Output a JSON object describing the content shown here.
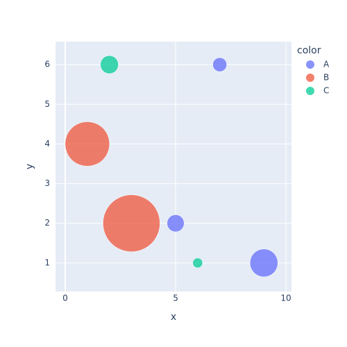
{
  "chart_data": {
    "type": "scatter",
    "x_label": "x",
    "y_label": "y",
    "legend_title": "color",
    "series": [
      {
        "name": "A",
        "color": "#636efa",
        "x": [
          7,
          5,
          9
        ],
        "values": [
          6,
          2,
          1
        ],
        "sizes": [
          6,
          9,
          24
        ]
      },
      {
        "name": "B",
        "color": "#ef553b",
        "x": [
          1,
          3
        ],
        "values": [
          4,
          2
        ],
        "sizes": [
          61,
          100
        ]
      },
      {
        "name": "C",
        "color": "#00cc96",
        "x": [
          2,
          6
        ],
        "values": [
          6,
          1
        ],
        "sizes": [
          10,
          3
        ]
      }
    ],
    "xlim": [
      -0.44,
      10.25
    ],
    "ylim": [
      0.28,
      6.58
    ],
    "xticks": [
      0,
      5,
      10
    ],
    "yticks": [
      1,
      2,
      3,
      4,
      5,
      6
    ],
    "grid": true,
    "legend": "right"
  }
}
